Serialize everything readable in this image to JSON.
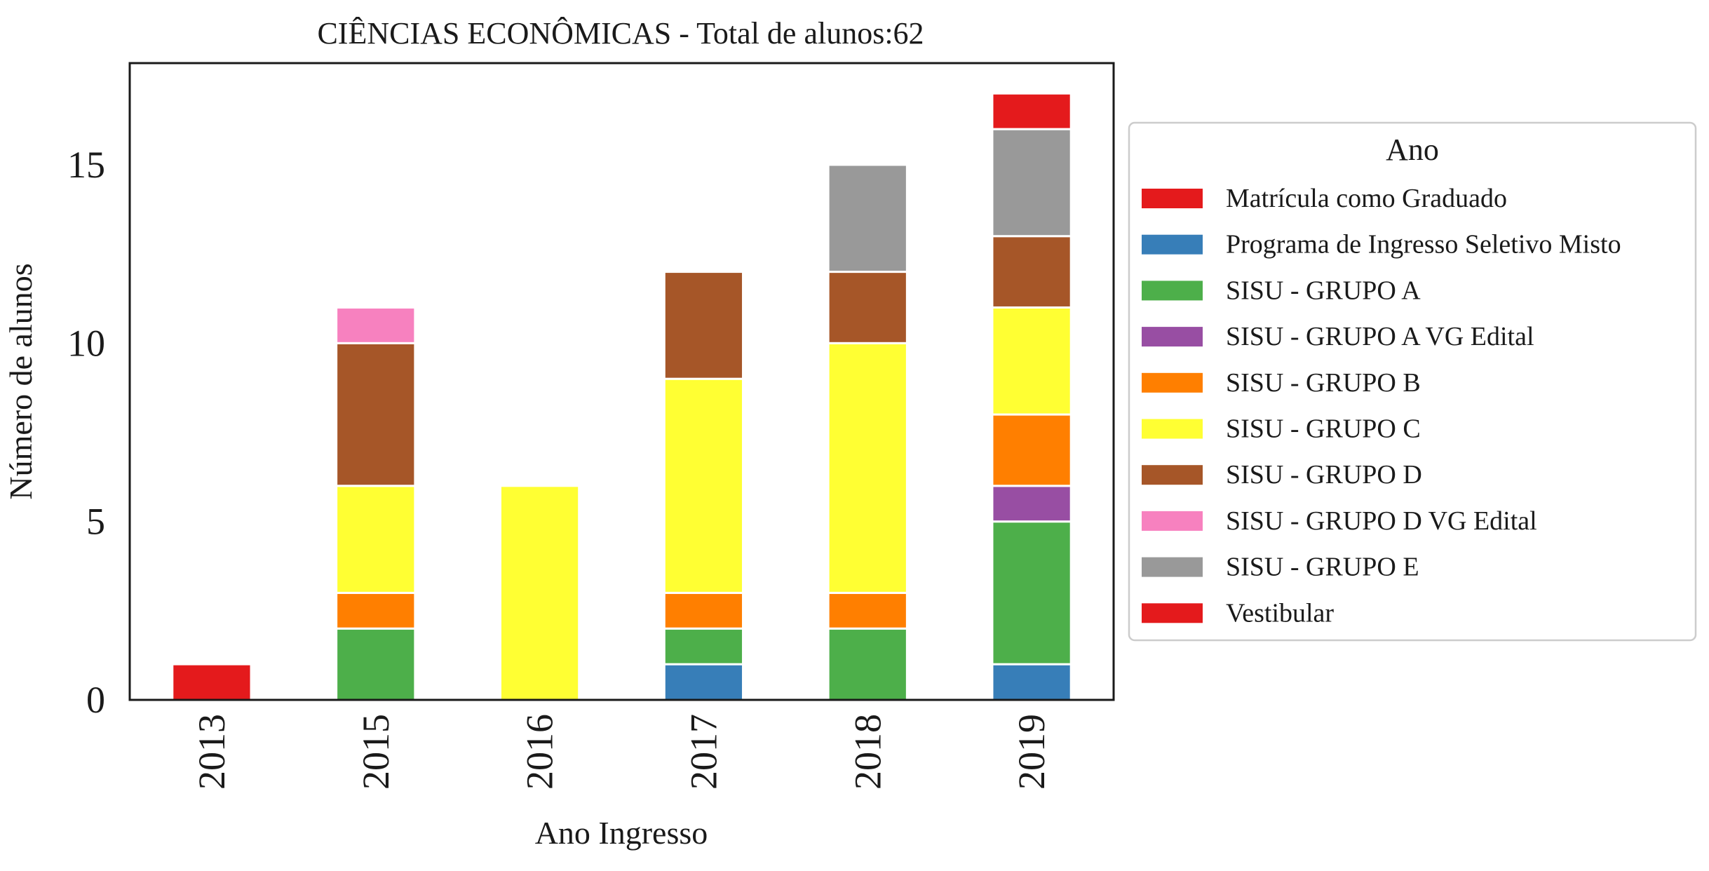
{
  "chart_data": {
    "type": "bar",
    "stacked": true,
    "title": "CIÊNCIAS ECONÔMICAS - Total de alunos:62",
    "xlabel": "Ano Ingresso",
    "ylabel": "Número de alunos",
    "ylim": [
      0,
      17.85
    ],
    "yticks": [
      "0",
      "5",
      "10",
      "15"
    ],
    "grid": false,
    "categories": [
      "2013",
      "2015",
      "2016",
      "2017",
      "2018",
      "2019"
    ],
    "legend": {
      "title": "Ano",
      "placement": "right-outside"
    },
    "series": [
      {
        "name": "Matrícula como Graduado",
        "color": "#e41a1c",
        "values": [
          0,
          0,
          0,
          0,
          0,
          0
        ]
      },
      {
        "name": "Programa de Ingresso Seletivo Misto",
        "color": "#377eb8",
        "values": [
          0,
          0,
          0,
          1,
          0,
          1
        ]
      },
      {
        "name": "SISU - GRUPO A",
        "color": "#4daf4a",
        "values": [
          0,
          2,
          0,
          1,
          2,
          4
        ]
      },
      {
        "name": "SISU - GRUPO A VG Edital",
        "color": "#984ea3",
        "values": [
          0,
          0,
          0,
          0,
          0,
          1
        ]
      },
      {
        "name": "SISU - GRUPO B",
        "color": "#ff7f00",
        "values": [
          0,
          1,
          0,
          1,
          1,
          2
        ]
      },
      {
        "name": "SISU - GRUPO C",
        "color": "#ffff33",
        "values": [
          0,
          3,
          6,
          6,
          7,
          3
        ]
      },
      {
        "name": "SISU - GRUPO D",
        "color": "#a65628",
        "values": [
          0,
          4,
          0,
          3,
          2,
          2
        ]
      },
      {
        "name": "SISU - GRUPO D VG Edital",
        "color": "#f781bf",
        "values": [
          0,
          1,
          0,
          0,
          0,
          0
        ]
      },
      {
        "name": "SISU - GRUPO E",
        "color": "#999999",
        "values": [
          0,
          0,
          0,
          0,
          3,
          3
        ]
      },
      {
        "name": "Vestibular",
        "color": "#e41a1c",
        "values": [
          1,
          0,
          0,
          0,
          0,
          1
        ]
      }
    ]
  }
}
